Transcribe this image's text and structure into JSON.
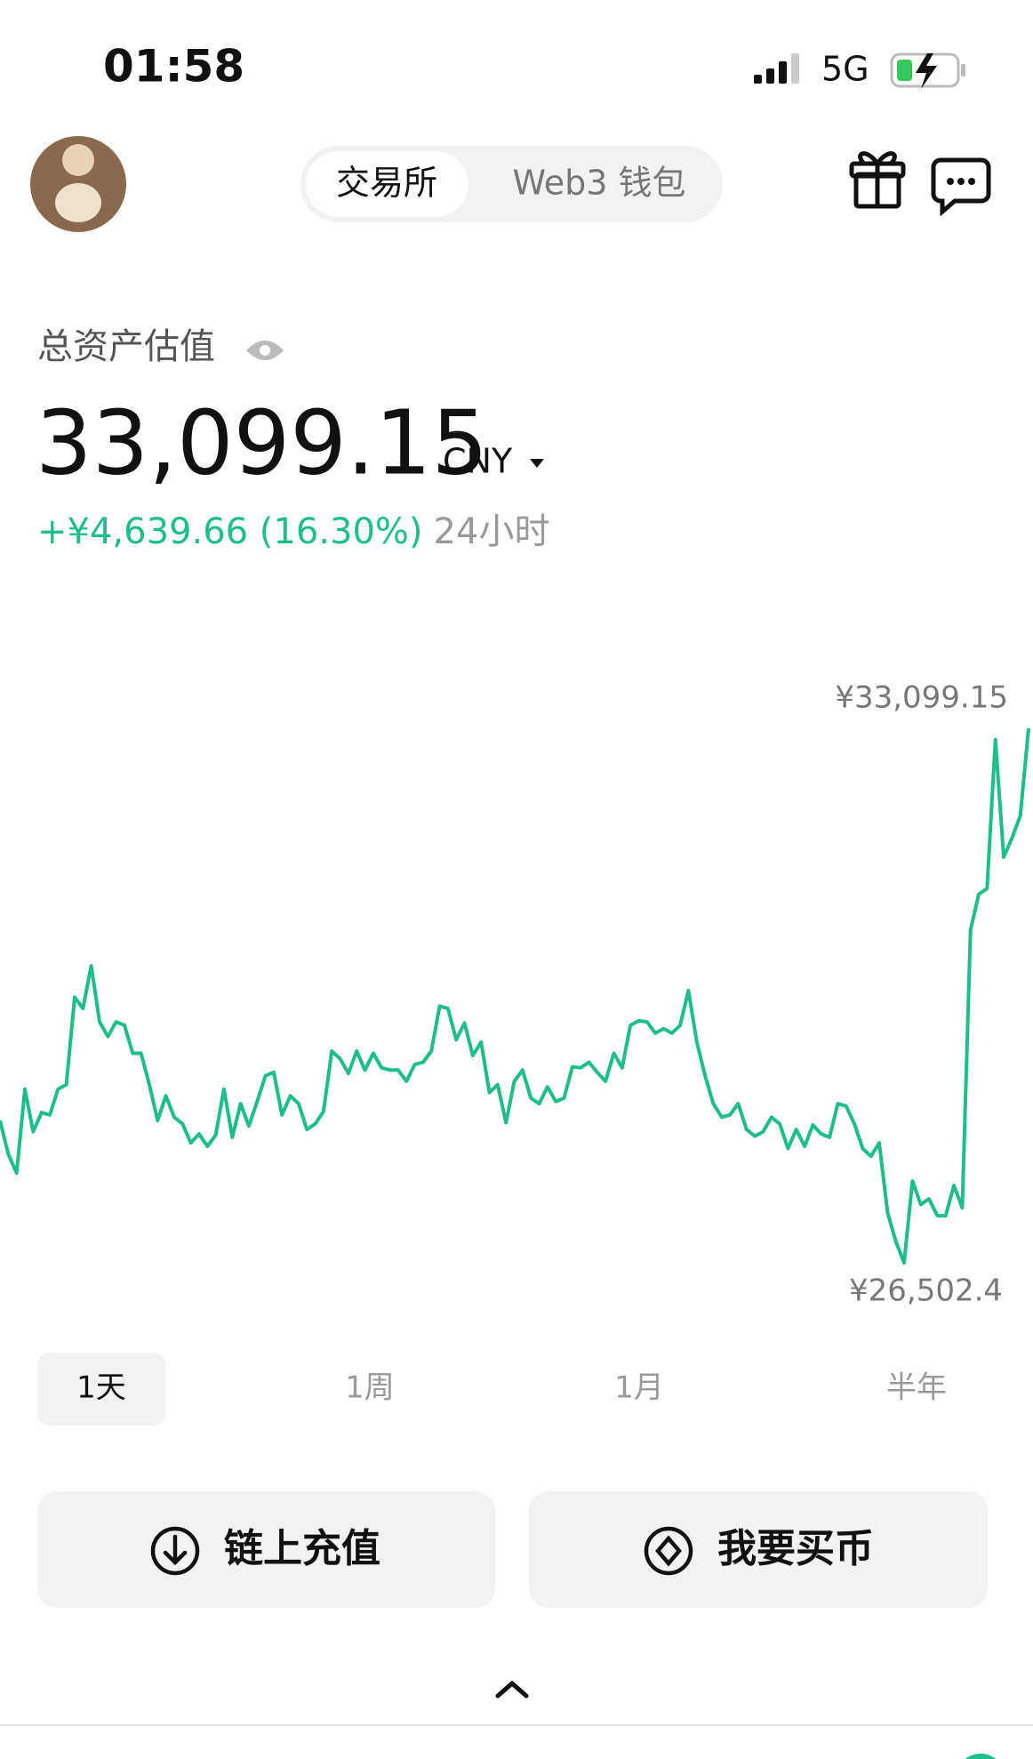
{
  "status": {
    "time": "01:58",
    "network": "5G"
  },
  "header": {
    "tabs": [
      "交易所",
      "Web3 钱包"
    ]
  },
  "balance": {
    "label": "总资产估值",
    "amount": "33,099.15",
    "currency": "CNY",
    "change": "+¥4,639.66 (16.30%)",
    "period": "24小时"
  },
  "chart": {
    "type": "line",
    "color": "#1dbd8c",
    "ylim": [
      26502.4,
      33099.15
    ],
    "max_label": "¥33,099.15",
    "min_label": "¥26,502.4",
    "values": [
      28259,
      27844,
      27609,
      28646,
      28120,
      28355,
      28328,
      28646,
      28701,
      29780,
      29641,
      30167,
      29476,
      29296,
      29476,
      29434,
      29088,
      29088,
      28701,
      28259,
      28563,
      28300,
      28217,
      27982,
      28093,
      27940,
      28079,
      28646,
      28051,
      28466,
      28189,
      28494,
      28812,
      28853,
      28328,
      28563,
      28466,
      28148,
      28217,
      28369,
      29116,
      29019,
      28839,
      29116,
      28881,
      29088,
      28909,
      28881,
      28881,
      28743,
      28950,
      28978,
      29116,
      29669,
      29641,
      29254,
      29462,
      29061,
      29227,
      28604,
      28701,
      28231,
      28743,
      28881,
      28535,
      28466,
      28673,
      28494,
      28535,
      28922,
      28909,
      28978,
      28853,
      28743,
      29088,
      28909,
      29434,
      29489,
      29476,
      29337,
      29393,
      29337,
      29434,
      29863,
      29227,
      28812,
      28466,
      28300,
      28328,
      28466,
      28148,
      28065,
      28120,
      28300,
      28217,
      27913,
      28148,
      27940,
      28203,
      28093,
      28051,
      28466,
      28438,
      28217,
      27913,
      27816,
      27982,
      27124,
      26765,
      26502.4,
      27512,
      27221,
      27290,
      27083,
      27083,
      27456,
      27180,
      30610,
      31052,
      31121,
      32961,
      31509,
      31744,
      32020,
      33099.15
    ]
  },
  "periods": [
    "1天",
    "1周",
    "1月",
    "半年"
  ],
  "actions": [
    "链上充值",
    "我要买币"
  ]
}
